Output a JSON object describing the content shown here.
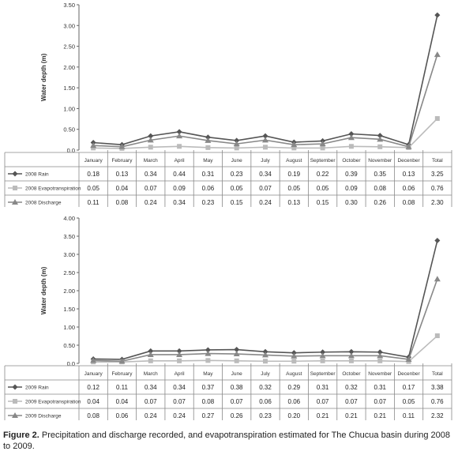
{
  "chart_data": [
    {
      "type": "line",
      "ylabel": "Water depth (m)",
      "ylim": [
        0,
        3.5
      ],
      "yticks": [
        "0.0",
        "0.50",
        "1.00",
        "1.50",
        "2.00",
        "2.50",
        "3.00",
        "3.50"
      ],
      "grid": false,
      "legend": "table-left",
      "categories": [
        "January",
        "February",
        "March",
        "April",
        "May",
        "June",
        "July",
        "August",
        "September",
        "October",
        "November",
        "Decenber",
        "Total"
      ],
      "series": [
        {
          "name": "2008 Rain",
          "marker": "diamond",
          "color": "#555555",
          "values": [
            0.18,
            0.13,
            0.34,
            0.44,
            0.31,
            0.23,
            0.34,
            0.19,
            0.22,
            0.39,
            0.35,
            0.13,
            3.25
          ],
          "labels": [
            "0.18",
            "0.13",
            "0.34",
            "0.44",
            "0.31",
            "0.23",
            "0.34",
            "0.19",
            "0.22",
            "0.39",
            "0.35",
            "0.13",
            "3.25"
          ]
        },
        {
          "name": "2008 Evapotranspiration",
          "marker": "square",
          "color": "#bbbbbb",
          "values": [
            0.05,
            0.04,
            0.07,
            0.09,
            0.06,
            0.05,
            0.07,
            0.05,
            0.05,
            0.09,
            0.08,
            0.06,
            0.76
          ],
          "labels": [
            "0.05",
            "0.04",
            "0.07",
            "0.09",
            "0.06",
            "0.05",
            "0.07",
            "0.05",
            "0.05",
            "0.09",
            "0.08",
            "0.06",
            "0.76"
          ]
        },
        {
          "name": "2008 Discharge",
          "marker": "triangle",
          "color": "#888888",
          "values": [
            0.11,
            0.08,
            0.24,
            0.34,
            0.23,
            0.15,
            0.24,
            0.13,
            0.15,
            0.3,
            0.26,
            0.08,
            2.3
          ],
          "labels": [
            "0.11",
            "0.08",
            "0.24",
            "0.34",
            "0.23",
            "0.15",
            "0.24",
            "0.13",
            "0.15",
            "0.30",
            "0.26",
            "0.08",
            "2.30"
          ]
        }
      ]
    },
    {
      "type": "line",
      "ylabel": "Water depth (m)",
      "ylim": [
        0,
        4.0
      ],
      "yticks": [
        "0.0",
        "0.50",
        "1.00",
        "1.50",
        "2.00",
        "2.50",
        "3.00",
        "3.50",
        "4.00"
      ],
      "grid": false,
      "legend": "table-left",
      "categories": [
        "January",
        "February",
        "March",
        "April",
        "May",
        "June",
        "July",
        "August",
        "September",
        "October",
        "November",
        "Decenber",
        "Total"
      ],
      "series": [
        {
          "name": "2009 Rain",
          "marker": "diamond",
          "color": "#555555",
          "values": [
            0.12,
            0.11,
            0.34,
            0.34,
            0.37,
            0.38,
            0.32,
            0.29,
            0.31,
            0.32,
            0.31,
            0.17,
            3.38
          ],
          "labels": [
            "0.12",
            "0.11",
            "0.34",
            "0.34",
            "0.37",
            "0.38",
            "0.32",
            "0.29",
            "0.31",
            "0.32",
            "0.31",
            "0.17",
            "3.38"
          ]
        },
        {
          "name": "2009 Evapotranspiration",
          "marker": "square",
          "color": "#bbbbbb",
          "values": [
            0.04,
            0.04,
            0.07,
            0.07,
            0.08,
            0.07,
            0.06,
            0.06,
            0.07,
            0.07,
            0.07,
            0.05,
            0.76
          ],
          "labels": [
            "0.04",
            "0.04",
            "0.07",
            "0.07",
            "0.08",
            "0.07",
            "0.06",
            "0.06",
            "0.07",
            "0.07",
            "0.07",
            "0.05",
            "0.76"
          ]
        },
        {
          "name": "2009 Discharge",
          "marker": "triangle",
          "color": "#888888",
          "values": [
            0.08,
            0.06,
            0.24,
            0.24,
            0.27,
            0.26,
            0.23,
            0.2,
            0.21,
            0.21,
            0.21,
            0.11,
            2.32
          ],
          "labels": [
            "0.08",
            "0.06",
            "0.24",
            "0.24",
            "0.27",
            "0.26",
            "0.23",
            "0.20",
            "0.21",
            "0.21",
            "0.21",
            "0.11",
            "2.32"
          ]
        }
      ]
    }
  ],
  "caption": {
    "label": "Figure 2.",
    "text": "Precipitation and discharge recorded, and evapotranspiration estimated for The Chucua basin during 2008 to 2009."
  }
}
